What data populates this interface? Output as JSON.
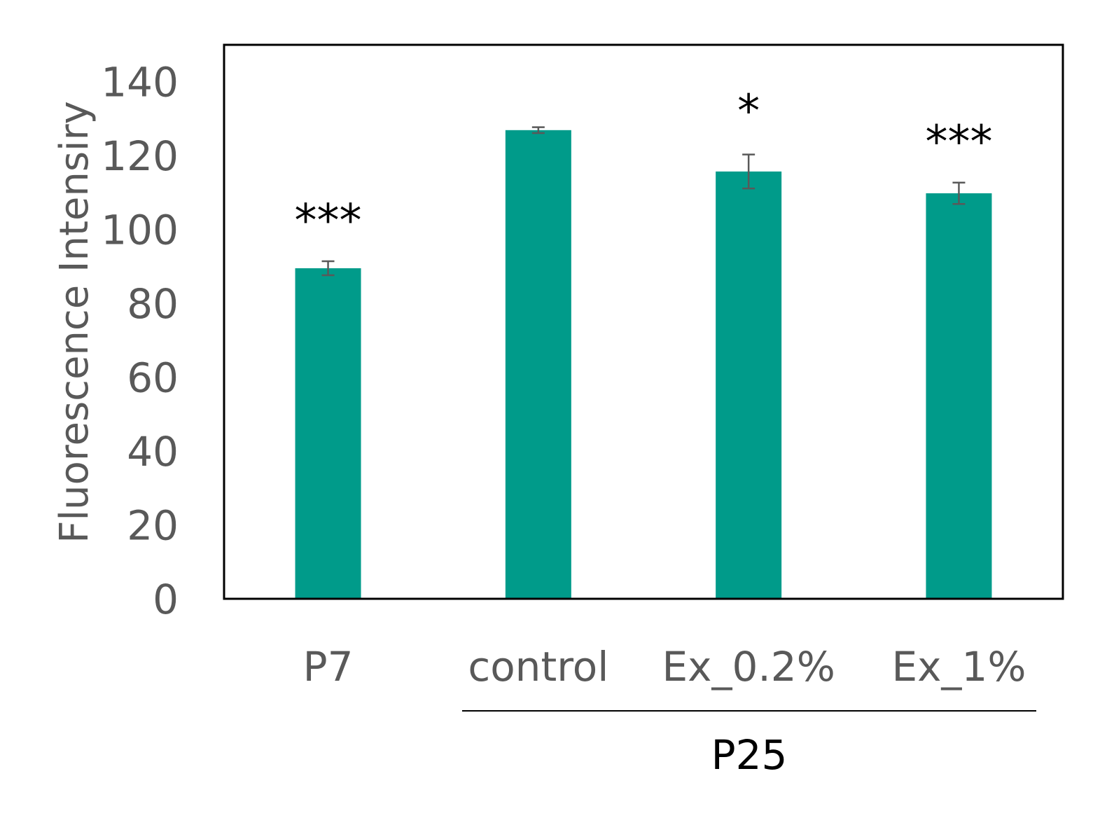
{
  "chart_data": {
    "type": "bar",
    "title": "",
    "xlabel": "",
    "ylabel": "Fluorescence Intensiry",
    "ylim": [
      0,
      150
    ],
    "yticks": [
      0,
      20,
      40,
      60,
      80,
      100,
      120,
      140
    ],
    "grid": false,
    "categories": [
      "P7",
      "control",
      "Ex_0.2%",
      "Ex_1%"
    ],
    "values": [
      89.5,
      126.9,
      115.7,
      109.8
    ],
    "errors": [
      1.9,
      0.8,
      4.6,
      2.9
    ],
    "significance": [
      "***",
      "",
      "*",
      "***"
    ],
    "group_label": {
      "label": "P25",
      "categories": [
        "control",
        "Ex_0.2%",
        "Ex_1%"
      ]
    },
    "colors": {
      "bar": "#009B8A",
      "error_bar": "#595959",
      "axis": "#000000"
    }
  }
}
